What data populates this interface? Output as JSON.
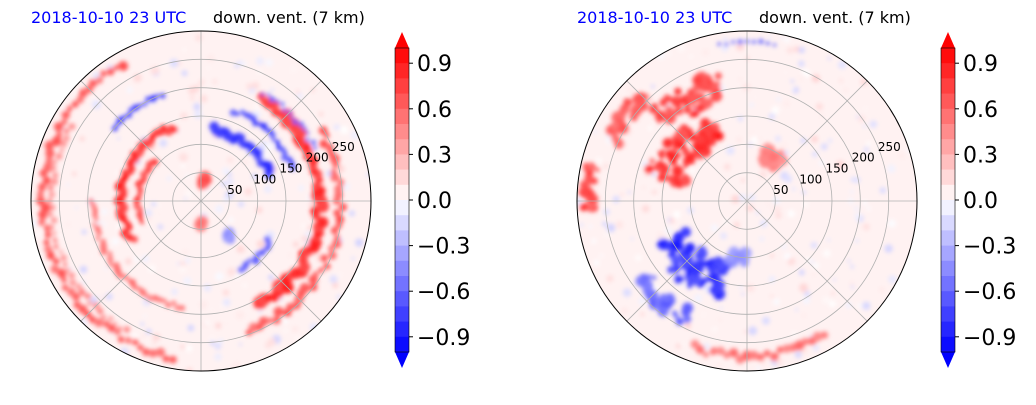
{
  "panels": [
    {
      "date_label": "2018-10-10 23 UTC",
      "field_label": "down. vent. (7 km)",
      "colors": {
        "date": "#0000ff",
        "field": "#000000"
      }
    },
    {
      "date_label": "2018-10-10 23 UTC",
      "field_label": "down. vent. (7 km)",
      "colors": {
        "date": "#0000ff",
        "field": "#000000"
      }
    }
  ],
  "chart_data": [
    {
      "type": "heatmap",
      "projection": "polar",
      "radial_ticks": [
        "50",
        "100",
        "150",
        "200",
        "250"
      ],
      "radial_tick_values": [
        50,
        100,
        150,
        200,
        250
      ],
      "r_max": 300,
      "grid": true,
      "colorbar": {
        "ticks": [
          "0.9",
          "0.6",
          "0.3",
          "0.0",
          "−0.3",
          "−0.6",
          "−0.9"
        ],
        "tick_values": [
          0.9,
          0.6,
          0.3,
          0.0,
          -0.3,
          -0.6,
          -0.9
        ],
        "vmin": -1.0,
        "vmax": 1.0,
        "extend": "both",
        "cmap": [
          "#0000ff",
          "#ffffff",
          "#ff0000"
        ]
      },
      "features": [
        {
          "kind": "arc",
          "r": 210,
          "a0": 300,
          "a1": 420,
          "w": 18,
          "v": 0.9
        },
        {
          "kind": "arc",
          "r": 245,
          "a0": 290,
          "a1": 390,
          "w": 14,
          "v": 0.7
        },
        {
          "kind": "arc",
          "r": 280,
          "a0": 120,
          "a1": 260,
          "w": 14,
          "v": 0.7
        },
        {
          "kind": "arc",
          "r": 265,
          "a0": 150,
          "a1": 240,
          "w": 10,
          "v": 0.5
        },
        {
          "kind": "arc",
          "r": 140,
          "a0": 110,
          "a1": 210,
          "w": 14,
          "v": 0.9
        },
        {
          "kind": "arc",
          "r": 110,
          "a0": 140,
          "a1": 200,
          "w": 10,
          "v": 0.8
        },
        {
          "kind": "arc",
          "r": 190,
          "a0": 180,
          "a1": 260,
          "w": 10,
          "v": 0.6
        },
        {
          "kind": "blob",
          "r": 35,
          "a": 80,
          "s": 14,
          "v": 0.8
        },
        {
          "kind": "blob",
          "r": 40,
          "a": 270,
          "s": 12,
          "v": 0.6
        },
        {
          "kind": "arc",
          "r": 130,
          "a0": 20,
          "a1": 80,
          "w": 14,
          "v": -0.9
        },
        {
          "kind": "arc",
          "r": 170,
          "a0": 20,
          "a1": 70,
          "w": 10,
          "v": -0.8
        },
        {
          "kind": "arc",
          "r": 220,
          "a0": 25,
          "a1": 60,
          "w": 8,
          "v": -0.7
        },
        {
          "kind": "arc",
          "r": 140,
          "a0": 300,
          "a1": 330,
          "w": 10,
          "v": -0.7
        },
        {
          "kind": "arc",
          "r": 200,
          "a0": 110,
          "a1": 140,
          "w": 10,
          "v": -0.8
        },
        {
          "kind": "blob",
          "r": 80,
          "a": 310,
          "s": 10,
          "v": -0.5
        }
      ]
    },
    {
      "type": "heatmap",
      "projection": "polar",
      "radial_ticks": [
        "50",
        "100",
        "150",
        "200",
        "250"
      ],
      "radial_tick_values": [
        50,
        100,
        150,
        200,
        250
      ],
      "r_max": 300,
      "grid": true,
      "colorbar": {
        "ticks": [
          "0.9",
          "0.6",
          "0.3",
          "0.0",
          "−0.3",
          "−0.6",
          "−0.9"
        ],
        "tick_values": [
          0.9,
          0.6,
          0.3,
          0.0,
          -0.3,
          -0.6,
          -0.9
        ],
        "vmin": -1.0,
        "vmax": 1.0,
        "extend": "both",
        "cmap": [
          "#0000ff",
          "#ffffff",
          "#ff0000"
        ]
      },
      "features": [
        {
          "kind": "blob",
          "r": 150,
          "a": 140,
          "s": 60,
          "v": 0.9
        },
        {
          "kind": "blob",
          "r": 210,
          "a": 120,
          "s": 40,
          "v": 0.8
        },
        {
          "kind": "blob",
          "r": 260,
          "a": 145,
          "s": 25,
          "v": 0.7
        },
        {
          "kind": "blob",
          "r": 90,
          "a": 60,
          "s": 25,
          "v": 0.6
        },
        {
          "kind": "blob",
          "r": 280,
          "a": 175,
          "s": 20,
          "v": 0.8
        },
        {
          "kind": "blob",
          "r": 150,
          "a": 230,
          "s": 55,
          "v": -0.9
        },
        {
          "kind": "blob",
          "r": 230,
          "a": 230,
          "s": 30,
          "v": -0.7
        },
        {
          "kind": "blob",
          "r": 100,
          "a": 260,
          "s": 20,
          "v": -0.5
        },
        {
          "kind": "arc",
          "r": 275,
          "a0": 250,
          "a1": 300,
          "w": 14,
          "v": 0.6
        },
        {
          "kind": "arc",
          "r": 280,
          "a0": 80,
          "a1": 100,
          "w": 8,
          "v": -0.6
        }
      ]
    }
  ]
}
